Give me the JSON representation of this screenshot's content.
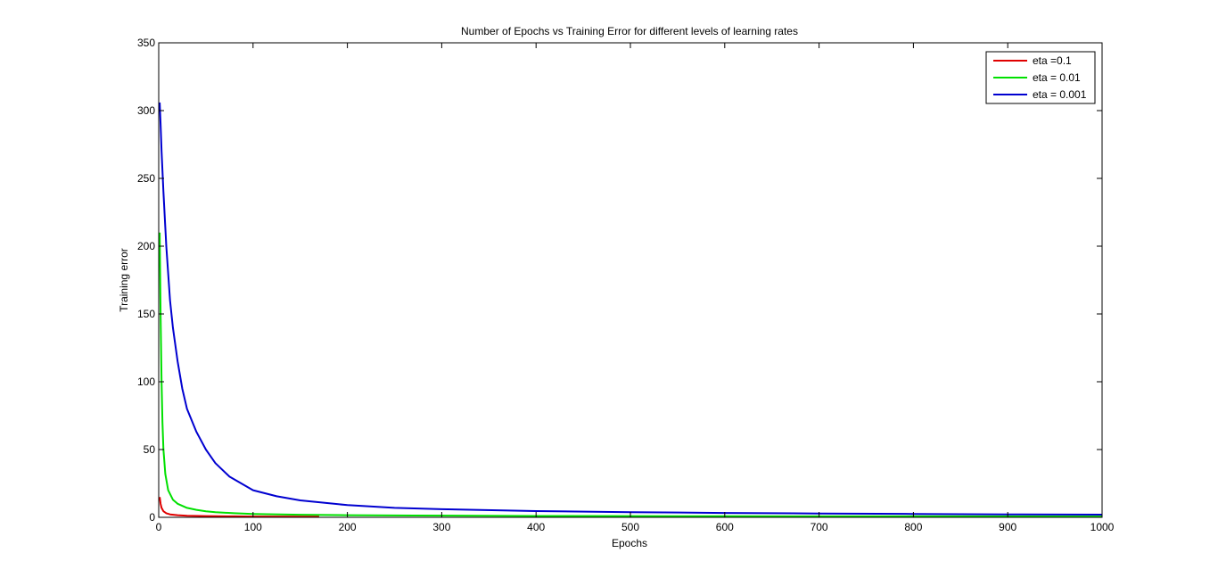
{
  "chart_data": {
    "type": "line",
    "title": "Number of Epochs vs Training Error for different levels of learning rates",
    "xlabel": "Epochs",
    "ylabel": "Training error",
    "xlim": [
      0,
      1000
    ],
    "ylim": [
      0,
      350
    ],
    "xticks": [
      0,
      100,
      200,
      300,
      400,
      500,
      600,
      700,
      800,
      900,
      1000
    ],
    "yticks": [
      0,
      50,
      100,
      150,
      200,
      250,
      300,
      350
    ],
    "grid": false,
    "legend_position": "top-right",
    "series": [
      {
        "name": "eta =0.1",
        "color": "#e00000",
        "x": [
          1,
          2,
          3,
          5,
          8,
          12,
          20,
          30,
          50,
          80,
          100,
          150,
          170
        ],
        "y": [
          15,
          10,
          7,
          4.5,
          3,
          2.2,
          1.6,
          1.2,
          0.9,
          0.7,
          0.6,
          0.5,
          0.45
        ]
      },
      {
        "name": "eta = 0.01",
        "color": "#00e000",
        "x": [
          1,
          2,
          3,
          4,
          5,
          7,
          10,
          15,
          20,
          30,
          40,
          50,
          60,
          80,
          100,
          150,
          200,
          270,
          400,
          600,
          800,
          1000
        ],
        "y": [
          210,
          150,
          100,
          70,
          50,
          32,
          20,
          13,
          10,
          7,
          5.5,
          4.5,
          3.8,
          3,
          2.5,
          1.9,
          1.6,
          1.3,
          1.0,
          0.8,
          0.7,
          0.6
        ]
      },
      {
        "name": "eta = 0.001",
        "color": "#0000d0",
        "x": [
          1,
          2,
          3,
          5,
          8,
          12,
          15,
          20,
          25,
          30,
          40,
          50,
          60,
          75,
          100,
          125,
          150,
          200,
          250,
          300,
          400,
          500,
          600,
          700,
          800,
          900,
          1000
        ],
        "y": [
          306,
          290,
          270,
          240,
          200,
          160,
          140,
          115,
          95,
          80,
          63,
          50,
          40,
          30,
          20,
          15.5,
          12.5,
          9,
          7,
          6,
          4.6,
          3.8,
          3.2,
          2.8,
          2.5,
          2.2,
          2.0
        ]
      }
    ]
  }
}
